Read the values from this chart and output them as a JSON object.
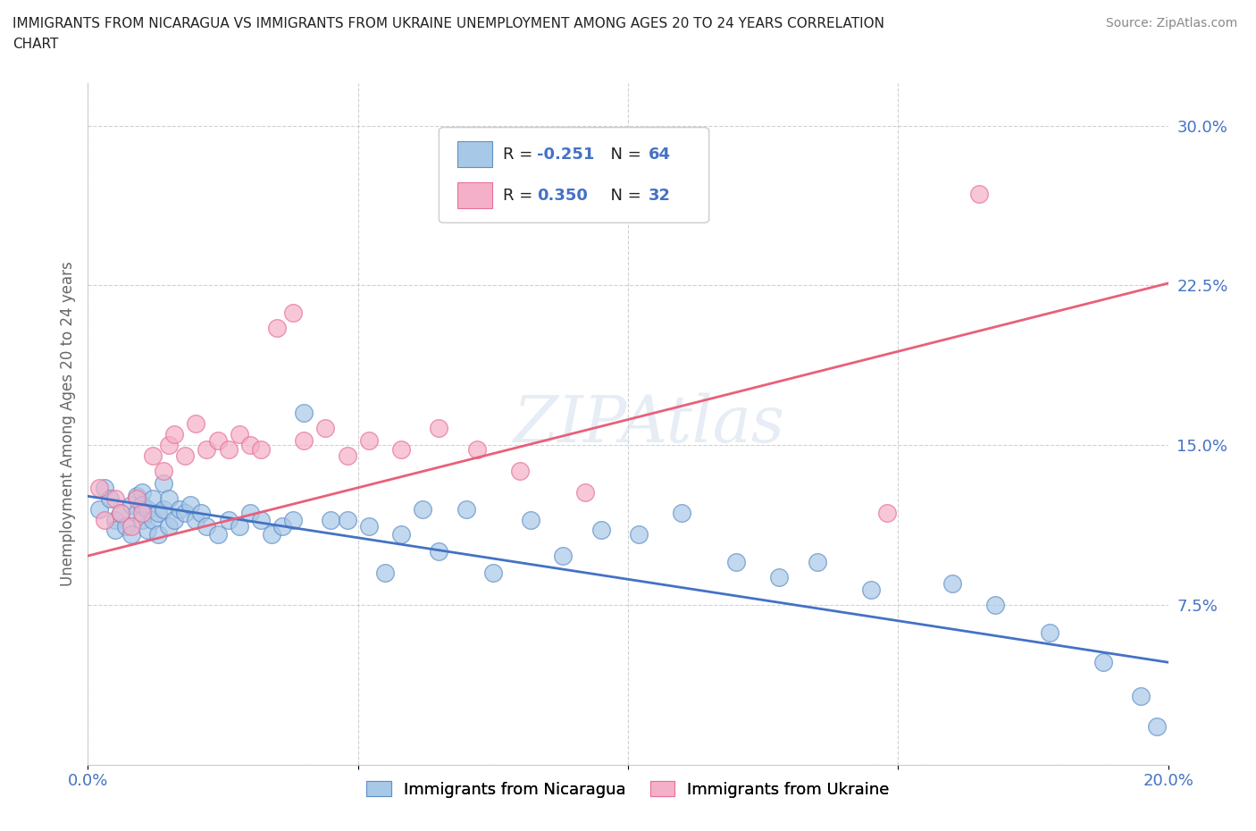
{
  "title_line1": "IMMIGRANTS FROM NICARAGUA VS IMMIGRANTS FROM UKRAINE UNEMPLOYMENT AMONG AGES 20 TO 24 YEARS CORRELATION",
  "title_line2": "CHART",
  "source": "Source: ZipAtlas.com",
  "ylabel": "Unemployment Among Ages 20 to 24 years",
  "xlim": [
    0.0,
    0.2
  ],
  "ylim": [
    0.0,
    0.32
  ],
  "xticks": [
    0.0,
    0.05,
    0.1,
    0.15,
    0.2
  ],
  "yticks": [
    0.0,
    0.075,
    0.15,
    0.225,
    0.3
  ],
  "xticklabels": [
    "0.0%",
    "",
    "",
    "",
    "20.0%"
  ],
  "yticklabels_right": [
    "",
    "7.5%",
    "15.0%",
    "22.5%",
    "30.0%"
  ],
  "nicaragua_color": "#a8c8e8",
  "ukraine_color": "#f4b0c8",
  "nicaragua_edge_color": "#6090c8",
  "ukraine_edge_color": "#e87098",
  "nicaragua_line_color": "#4472c4",
  "ukraine_line_color": "#e8607a",
  "nicaragua_R": -0.251,
  "nicaragua_N": 64,
  "ukraine_R": 0.35,
  "ukraine_N": 32,
  "watermark": "ZIPAtlas",
  "background_color": "#ffffff",
  "tick_color": "#4472c4",
  "nic_line_x0": 0.0,
  "nic_line_y0": 0.126,
  "nic_line_x1": 0.2,
  "nic_line_y1": 0.048,
  "ukr_line_x0": 0.0,
  "ukr_line_y0": 0.098,
  "ukr_line_x1": 0.2,
  "ukr_line_y1": 0.226,
  "nicaragua_x": [
    0.002,
    0.003,
    0.004,
    0.005,
    0.005,
    0.006,
    0.007,
    0.008,
    0.008,
    0.009,
    0.009,
    0.01,
    0.01,
    0.01,
    0.011,
    0.011,
    0.012,
    0.012,
    0.013,
    0.013,
    0.014,
    0.014,
    0.015,
    0.015,
    0.016,
    0.017,
    0.018,
    0.019,
    0.02,
    0.021,
    0.022,
    0.024,
    0.026,
    0.028,
    0.03,
    0.032,
    0.034,
    0.036,
    0.038,
    0.04,
    0.045,
    0.048,
    0.052,
    0.055,
    0.058,
    0.062,
    0.065,
    0.07,
    0.075,
    0.082,
    0.088,
    0.095,
    0.102,
    0.11,
    0.12,
    0.128,
    0.135,
    0.145,
    0.16,
    0.168,
    0.178,
    0.188,
    0.195,
    0.198
  ],
  "nicaragua_y": [
    0.12,
    0.13,
    0.125,
    0.115,
    0.11,
    0.118,
    0.112,
    0.122,
    0.108,
    0.126,
    0.118,
    0.128,
    0.122,
    0.115,
    0.12,
    0.11,
    0.125,
    0.115,
    0.118,
    0.108,
    0.132,
    0.12,
    0.125,
    0.112,
    0.115,
    0.12,
    0.118,
    0.122,
    0.115,
    0.118,
    0.112,
    0.108,
    0.115,
    0.112,
    0.118,
    0.115,
    0.108,
    0.112,
    0.115,
    0.165,
    0.115,
    0.115,
    0.112,
    0.09,
    0.108,
    0.12,
    0.1,
    0.12,
    0.09,
    0.115,
    0.098,
    0.11,
    0.108,
    0.118,
    0.095,
    0.088,
    0.095,
    0.082,
    0.085,
    0.075,
    0.062,
    0.048,
    0.032,
    0.018
  ],
  "ukraine_x": [
    0.002,
    0.003,
    0.005,
    0.006,
    0.008,
    0.009,
    0.01,
    0.012,
    0.014,
    0.015,
    0.016,
    0.018,
    0.02,
    0.022,
    0.024,
    0.026,
    0.028,
    0.03,
    0.032,
    0.035,
    0.038,
    0.04,
    0.044,
    0.048,
    0.052,
    0.058,
    0.065,
    0.072,
    0.08,
    0.092,
    0.148,
    0.165
  ],
  "ukraine_y": [
    0.13,
    0.115,
    0.125,
    0.118,
    0.112,
    0.125,
    0.118,
    0.145,
    0.138,
    0.15,
    0.155,
    0.145,
    0.16,
    0.148,
    0.152,
    0.148,
    0.155,
    0.15,
    0.148,
    0.205,
    0.212,
    0.152,
    0.158,
    0.145,
    0.152,
    0.148,
    0.158,
    0.148,
    0.138,
    0.128,
    0.118,
    0.268
  ]
}
